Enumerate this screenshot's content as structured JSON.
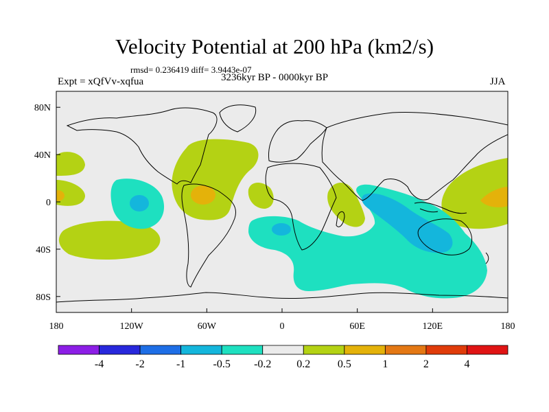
{
  "title": "Velocity Potential at 200 hPa (km2/s)",
  "stats": "rmsd= 0.236419  diff= 3.9443e-07",
  "experiment": "Expt = xQfVv-xqfua",
  "period": "3236kyr BP - 0000kyr BP",
  "season": "JJA",
  "colors": {
    "background": "#ebebeb",
    "level_pos_0_2": "#b4d214",
    "level_pos_0_5": "#e4b20a",
    "level_neg_0_2": "#1ee0c0",
    "level_neg_0_5": "#14b6dc",
    "coastline": "#000000"
  },
  "axes": {
    "x_ticks": [
      {
        "label": "180",
        "lon": -180
      },
      {
        "label": "120W",
        "lon": -120
      },
      {
        "label": "60W",
        "lon": -60
      },
      {
        "label": "0",
        "lon": 0
      },
      {
        "label": "60E",
        "lon": 60
      },
      {
        "label": "120E",
        "lon": 120
      },
      {
        "label": "180",
        "lon": 180
      }
    ],
    "y_ticks": [
      {
        "label": "80N",
        "lat": 80
      },
      {
        "label": "40N",
        "lat": 40
      },
      {
        "label": "0",
        "lat": 0
      },
      {
        "label": "40S",
        "lat": -40
      },
      {
        "label": "80S",
        "lat": -80
      }
    ]
  },
  "colorbar": {
    "colors": [
      "#8c1ee6",
      "#2828dc",
      "#1e6ee6",
      "#14b6dc",
      "#1ee0c0",
      "#ebebeb",
      "#b4d214",
      "#e4b20a",
      "#e47814",
      "#e03c0a",
      "#e01414"
    ],
    "labels": [
      "-4",
      "-2",
      "-1",
      "-0.5",
      "-0.2",
      "0.2",
      "0.5",
      "1",
      "2",
      "4"
    ]
  }
}
